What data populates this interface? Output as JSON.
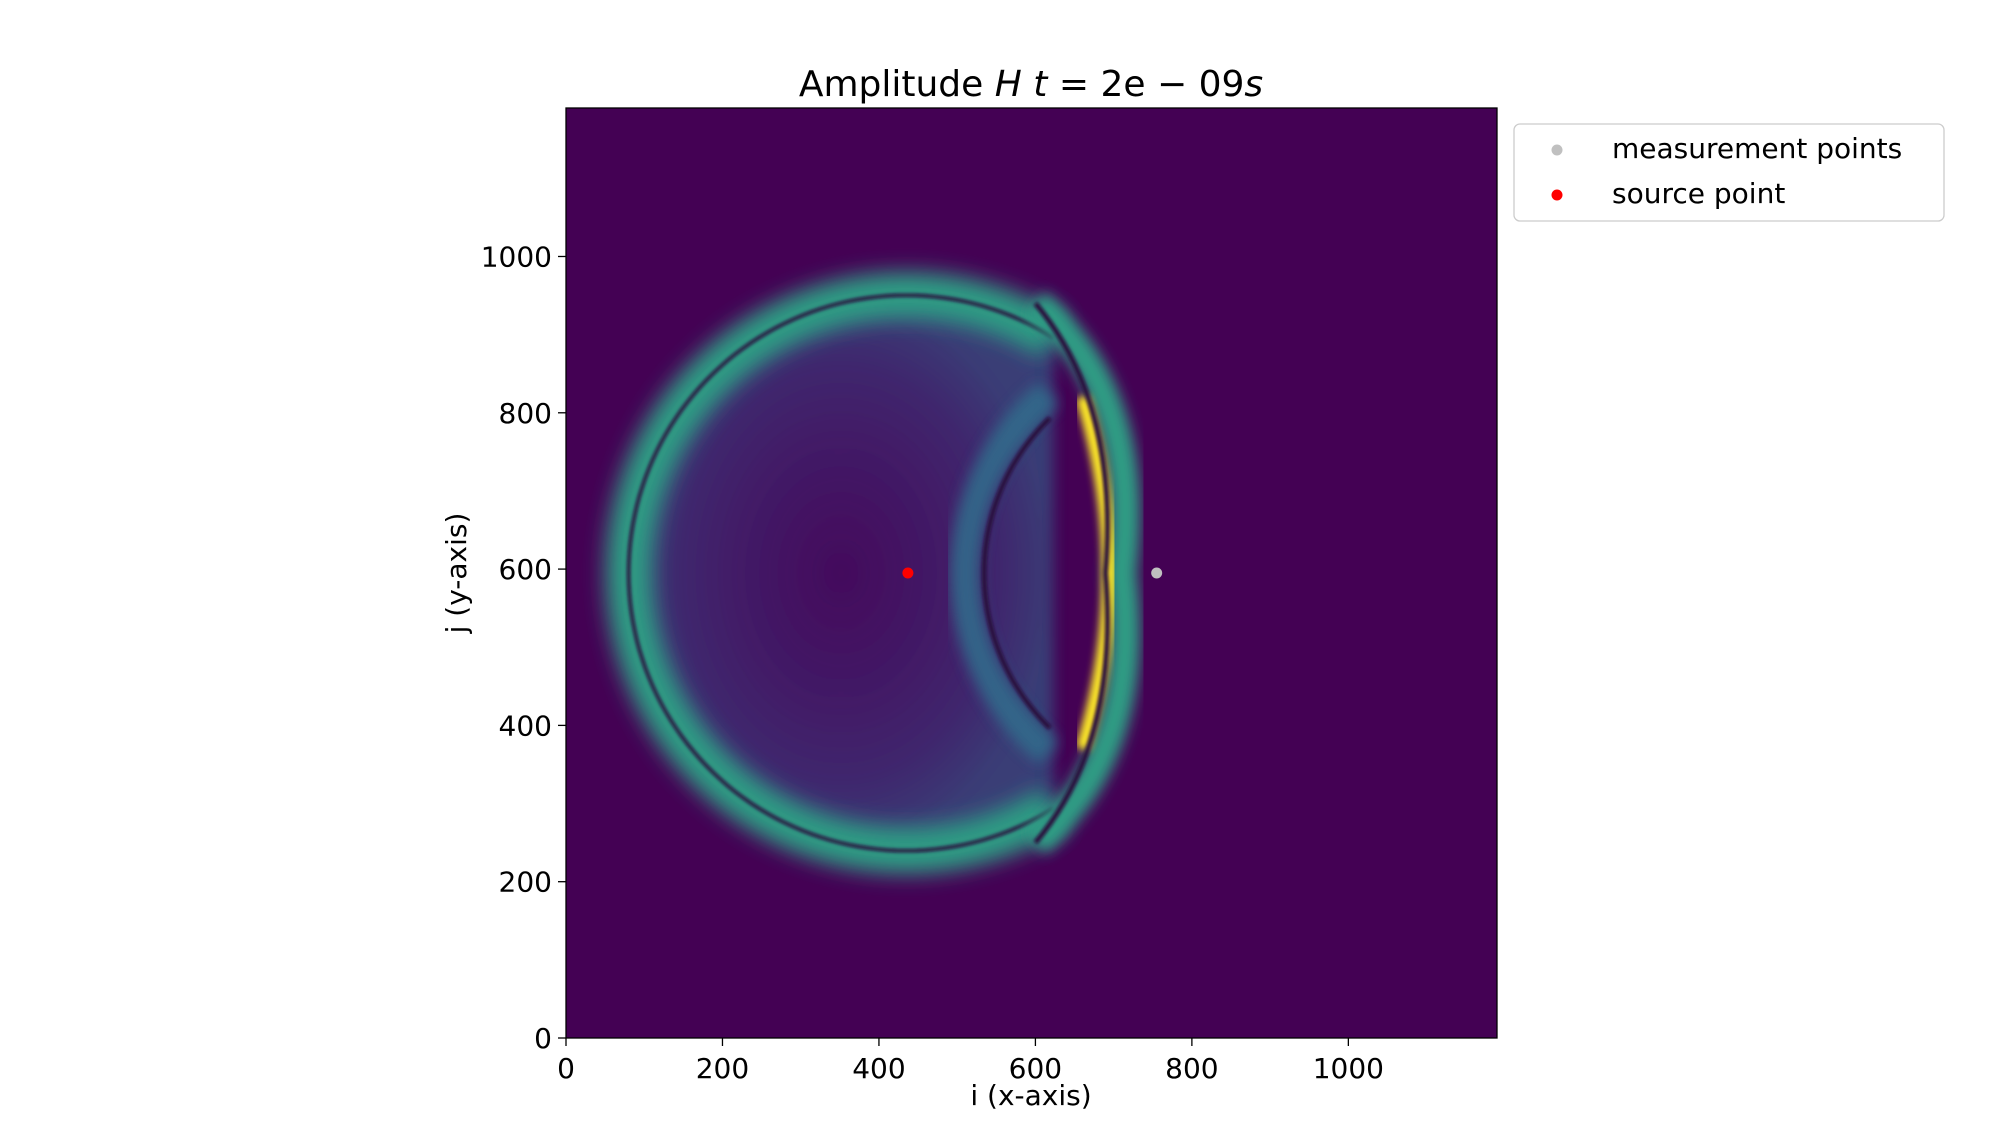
{
  "chart_data": {
    "type": "heatmap",
    "title_prefix": "Amplitude ",
    "title_quantity": "H",
    "title_time_var": "t",
    "title_time_value": "2e",
    "title_time_exp": "09",
    "title_time_unit": "s",
    "xlabel": "i (x-axis)",
    "ylabel": "j (y-axis)",
    "xlim": [
      0,
      1190
    ],
    "ylim": [
      0,
      1190
    ],
    "xticks": [
      0,
      200,
      400,
      600,
      800,
      1000
    ],
    "yticks": [
      0,
      200,
      400,
      600,
      800,
      1000
    ],
    "colormap": "viridis",
    "background_color": "#440154",
    "wave_fronts": [
      {
        "shape": "ring",
        "center": [
          435,
          595
        ],
        "radius": 355,
        "thickness": 95,
        "level": 0.55,
        "theta_range": [
          58,
          302
        ]
      },
      {
        "shape": "ring",
        "center": [
          435,
          595
        ],
        "radius": 355,
        "thickness": 8,
        "level": 0.0,
        "theta_range": [
          58,
          302
        ]
      },
      {
        "shape": "ring",
        "center": [
          810,
          595
        ],
        "radius": 300,
        "thickness": 70,
        "level": 0.35,
        "theta_range": [
          130,
          230
        ]
      },
      {
        "shape": "reflected_front",
        "x_peak": 710,
        "y": 595,
        "level": 1.0
      }
    ],
    "series": [
      {
        "name": "measurement points",
        "color": "#c0c0c0",
        "points": [
          [
            755,
            595
          ]
        ]
      },
      {
        "name": "source point",
        "color": "#ff0000",
        "points": [
          [
            437,
            595
          ]
        ]
      }
    ],
    "legend_position": "outside-upper-right"
  }
}
